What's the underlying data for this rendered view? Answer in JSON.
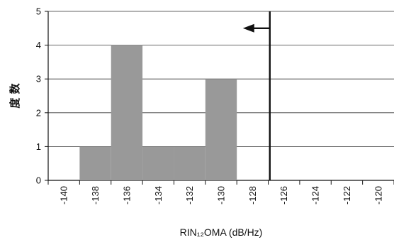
{
  "chart_data": {
    "type": "bar",
    "title": "",
    "xlabel": "RIN₁₂OMA (dB/Hz)",
    "ylabel": "度 数",
    "ylim": [
      0,
      5
    ],
    "yticks": [
      0,
      1,
      2,
      3,
      4,
      5
    ],
    "xlim": [
      -141,
      -119
    ],
    "xticks": [
      -140,
      -138,
      -136,
      -134,
      -132,
      -130,
      -128,
      -126,
      -124,
      -122,
      -120
    ],
    "bins": [
      {
        "start": -139,
        "end": -137,
        "value": 1
      },
      {
        "start": -137,
        "end": -135,
        "value": 4
      },
      {
        "start": -135,
        "end": -133,
        "value": 1
      },
      {
        "start": -133,
        "end": -131,
        "value": 1
      },
      {
        "start": -131,
        "end": -129,
        "value": 3
      }
    ],
    "limit_line": {
      "x": -126.9,
      "direction": "left"
    },
    "bar_color": "#999999",
    "grid": "horizontal",
    "legend": "none"
  }
}
